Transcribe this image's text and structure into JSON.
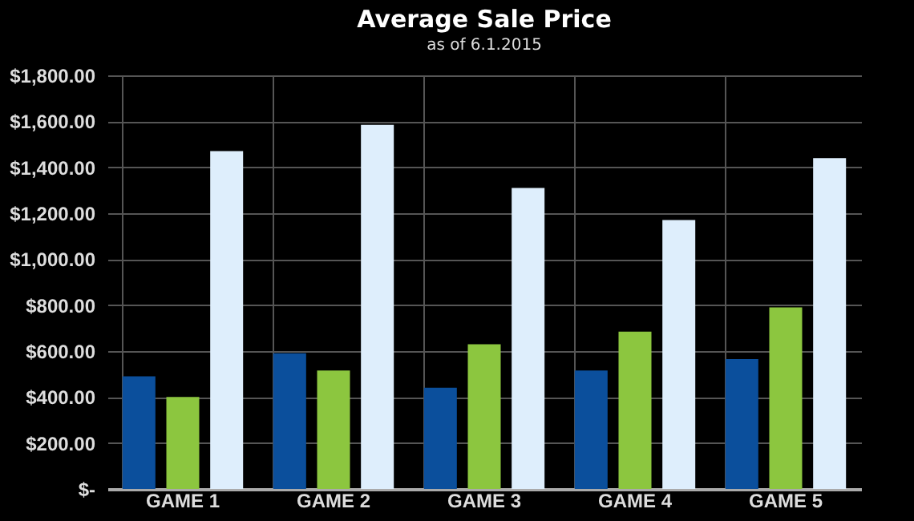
{
  "chart_data": {
    "type": "bar",
    "title": "Average Sale Price",
    "subtitle": "as of 6.1.2015",
    "categories": [
      "GAME 1",
      "GAME 2",
      "GAME 3",
      "GAME 4",
      "GAME 5"
    ],
    "series": [
      {
        "color": "#0b4f9c",
        "values": [
          490,
          590,
          440,
          515,
          565
        ]
      },
      {
        "color": "#8cc63f",
        "values": [
          400,
          515,
          630,
          685,
          790
        ]
      },
      {
        "color": "#deeefc",
        "values": [
          1470,
          1585,
          1310,
          1170,
          1440
        ]
      }
    ],
    "ylim": [
      0,
      1800
    ],
    "yticks": [
      {
        "value": 0,
        "label": "$-"
      },
      {
        "value": 200,
        "label": "$200.00"
      },
      {
        "value": 400,
        "label": "$400.00"
      },
      {
        "value": 600,
        "label": "$600.00"
      },
      {
        "value": 800,
        "label": "$800.00"
      },
      {
        "value": 1000,
        "label": "$1,000.00"
      },
      {
        "value": 1200,
        "label": "$1,200.00"
      },
      {
        "value": 1400,
        "label": "$1,400.00"
      },
      {
        "value": 1600,
        "label": "$1,600.00"
      },
      {
        "value": 1800,
        "label": "$1,800.00"
      }
    ],
    "grid": true,
    "legend": false
  }
}
